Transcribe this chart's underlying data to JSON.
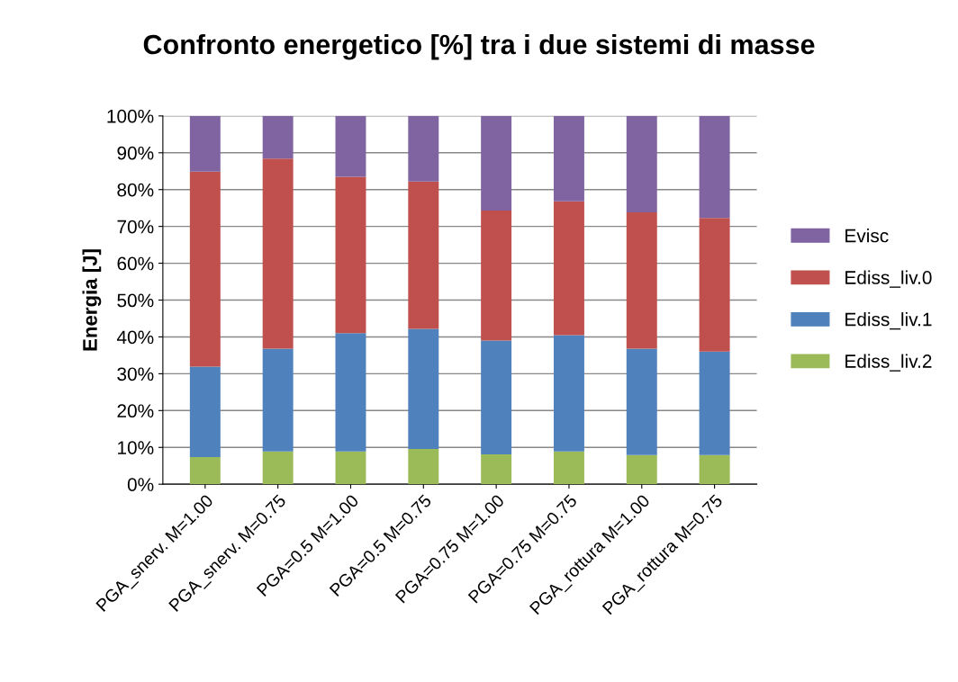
{
  "chart_data": {
    "type": "bar",
    "stacked": true,
    "title": "Confronto energetico [%] tra i due sistemi di masse",
    "ylabel": "Energia [J]",
    "categories": [
      "PGA_snerv. M=1.00",
      "PGA_snerv. M=0.75",
      "PGA=0.5 M=1.00",
      "PGA=0.5 M=0.75",
      "PGA=0.75 M=1.00",
      "PGA=0.75 M=0.75",
      "PGA_rottura M=1.00",
      "PGA_rottura M=0.75"
    ],
    "series": [
      {
        "name": "Ediss_liv.2",
        "color": "#9bbb59",
        "values": [
          7.4,
          8.9,
          8.9,
          9.6,
          8.1,
          8.9,
          7.9,
          7.9
        ]
      },
      {
        "name": "Ediss_liv.1",
        "color": "#4f81bd",
        "values": [
          24.5,
          27.9,
          32.1,
          32.6,
          30.9,
          31.6,
          28.9,
          28.1
        ]
      },
      {
        "name": "Ediss_liv.0",
        "color": "#c0504d",
        "values": [
          53.0,
          51.6,
          42.5,
          40.0,
          35.3,
          36.3,
          37.0,
          36.3
        ]
      },
      {
        "name": "Evisc",
        "color": "#8064a2",
        "values": [
          15.1,
          11.6,
          16.5,
          17.8,
          25.7,
          23.2,
          26.2,
          27.7
        ]
      }
    ],
    "ylim": [
      0,
      100
    ],
    "yticks": [
      {
        "value": 0,
        "label": "0%"
      },
      {
        "value": 10,
        "label": "10%"
      },
      {
        "value": 20,
        "label": "20%"
      },
      {
        "value": 30,
        "label": "30%"
      },
      {
        "value": 40,
        "label": "40%"
      },
      {
        "value": 50,
        "label": "50%"
      },
      {
        "value": 60,
        "label": "60%"
      },
      {
        "value": 70,
        "label": "70%"
      },
      {
        "value": 80,
        "label": "80%"
      },
      {
        "value": 90,
        "label": "90%"
      },
      {
        "value": 100,
        "label": "100%"
      }
    ],
    "grid": "y",
    "legend": "right"
  }
}
